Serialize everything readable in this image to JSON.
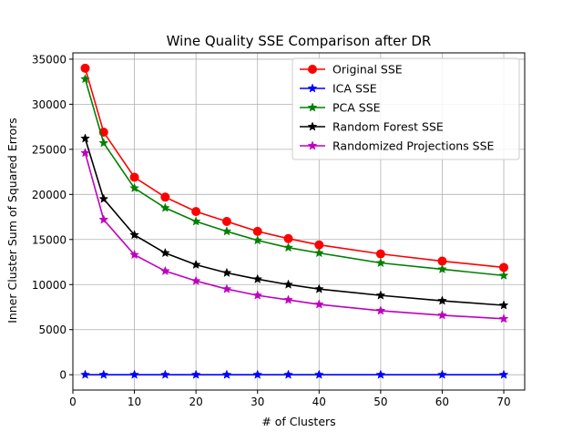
{
  "chart_data": {
    "type": "line",
    "title": "Wine Quality  SSE Comparison after DR",
    "xlabel": "# of Clusters",
    "ylabel": "Inner Cluster Sum of Squared Errors",
    "xlim": [
      0,
      73.4
    ],
    "ylim": [
      -1700,
      35700
    ],
    "xticks": [
      0,
      10,
      20,
      30,
      40,
      50,
      60,
      70
    ],
    "yticks": [
      0,
      5000,
      10000,
      15000,
      20000,
      25000,
      30000,
      35000
    ],
    "grid": true,
    "legend_position": "top-right",
    "x": [
      2,
      5,
      10,
      15,
      20,
      25,
      30,
      35,
      40,
      50,
      60,
      70
    ],
    "series": [
      {
        "name": "Original SSE",
        "color": "#ff0000",
        "marker": "circle",
        "values": [
          34000,
          26900,
          21900,
          19700,
          18100,
          17000,
          15900,
          15100,
          14400,
          13400,
          12600,
          11900
        ]
      },
      {
        "name": "ICA SSE",
        "color": "#0000ff",
        "marker": "star",
        "values": [
          0,
          0,
          0,
          0,
          0,
          0,
          0,
          0,
          0,
          0,
          0,
          0
        ]
      },
      {
        "name": "PCA SSE",
        "color": "#008000",
        "marker": "star",
        "values": [
          32800,
          25700,
          20700,
          18500,
          17000,
          15900,
          14900,
          14100,
          13500,
          12400,
          11700,
          11000
        ]
      },
      {
        "name": "Random Forest SSE",
        "color": "#000000",
        "marker": "star",
        "values": [
          26200,
          19500,
          15500,
          13500,
          12200,
          11300,
          10600,
          10000,
          9500,
          8800,
          8200,
          7700
        ]
      },
      {
        "name": "Randomized Projections SSE",
        "color": "#bf00bf",
        "marker": "star",
        "values": [
          24600,
          17200,
          13300,
          11500,
          10400,
          9500,
          8800,
          8300,
          7800,
          7100,
          6600,
          6200
        ]
      }
    ]
  }
}
